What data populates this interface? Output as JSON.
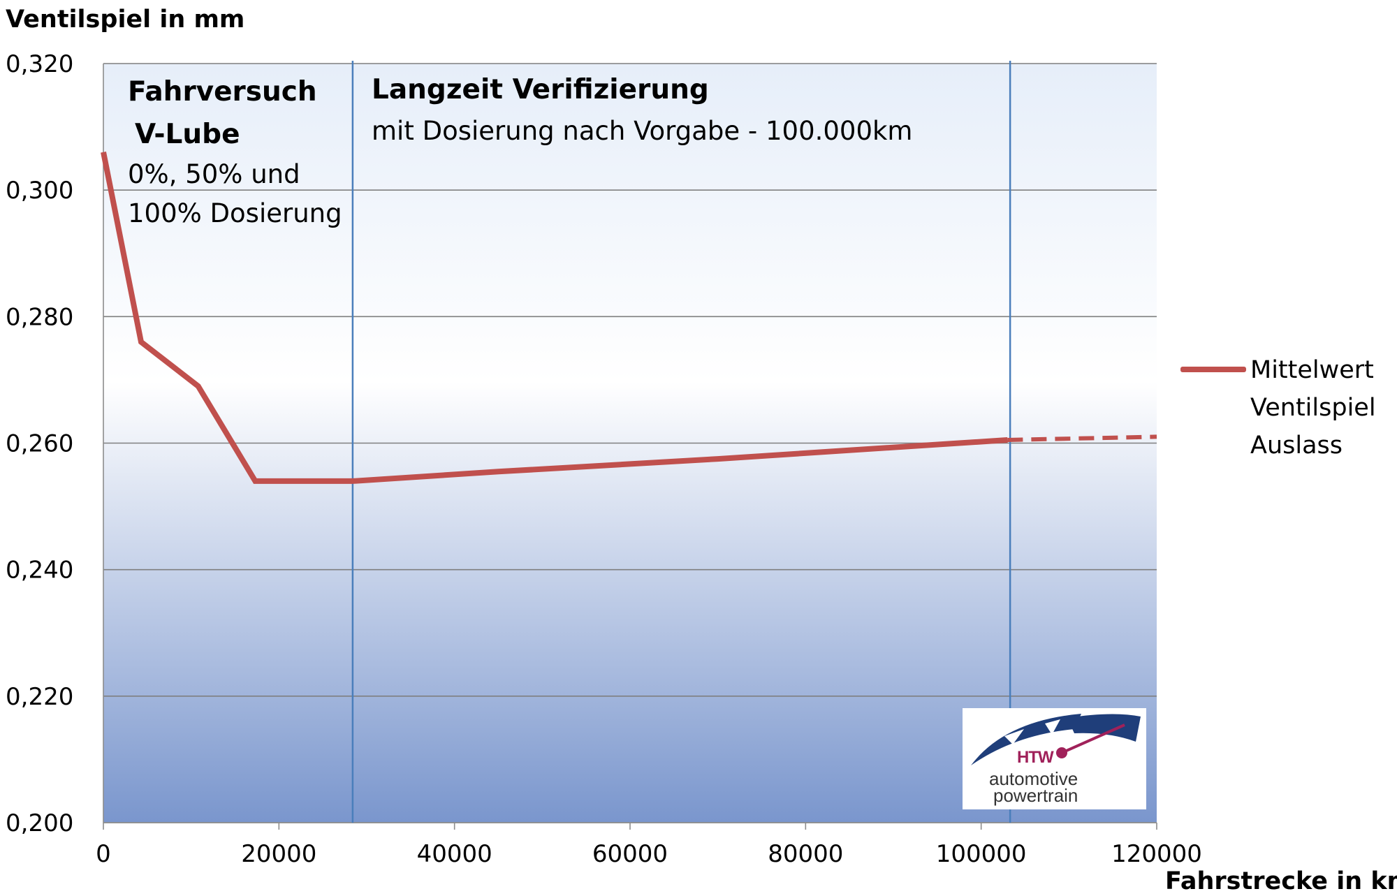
{
  "chart_data": {
    "type": "line",
    "ylabel": "Ventilspiel in mm",
    "xlabel": "Fahrstrecke in km",
    "xlim": [
      0,
      120000
    ],
    "ylim": [
      0.2,
      0.32
    ],
    "x_ticks": [
      "0",
      "20000",
      "40000",
      "60000",
      "80000",
      "100000",
      "120000"
    ],
    "y_ticks": [
      "0,320",
      "0,300",
      "0,280",
      "0,260",
      "0,240",
      "0,220",
      "0,200"
    ],
    "grid": "horizontal",
    "legend_position": "right",
    "series": [
      {
        "name": "Mittelwert Ventilspiel Auslass",
        "color": "#c0504d",
        "points": [
          {
            "x": 0,
            "y": 0.306
          },
          {
            "x": 4300,
            "y": 0.276
          },
          {
            "x": 10800,
            "y": 0.269
          },
          {
            "x": 17300,
            "y": 0.254
          },
          {
            "x": 28400,
            "y": 0.254
          },
          {
            "x": 45000,
            "y": 0.2555
          },
          {
            "x": 70000,
            "y": 0.2575
          },
          {
            "x": 92000,
            "y": 0.2595
          },
          {
            "x": 103000,
            "y": 0.2605
          }
        ],
        "projection": [
          {
            "x": 103000,
            "y": 0.2605
          },
          {
            "x": 120000,
            "y": 0.261
          }
        ]
      }
    ],
    "vertical_lines": [
      28400,
      103300
    ],
    "annotations": {
      "phase1_title_1": "Fahrversuch",
      "phase1_title_2": "V-Lube",
      "phase1_text_1": "0%, 50% und",
      "phase1_text_2": "100% Dosierung",
      "phase2_title": "Langzeit Verifizierung",
      "phase2_text": "mit Dosierung nach Vorgabe - 100.000km"
    },
    "legend_lines": [
      "Mittelwert",
      "Ventilspiel",
      "Auslass"
    ]
  },
  "logo": {
    "text_htw": "HTW",
    "text_line1": "automotive",
    "text_line2": "powertrain",
    "colors": {
      "arc": "#1f3e7a",
      "accent": "#a0215a"
    }
  },
  "colors": {
    "plot_top": "#ffffff",
    "plot_bottom": "#7c99cf",
    "gridline": "#7f7f7f",
    "vertical_line": "#4a7ebb",
    "series": "#c0504d"
  }
}
